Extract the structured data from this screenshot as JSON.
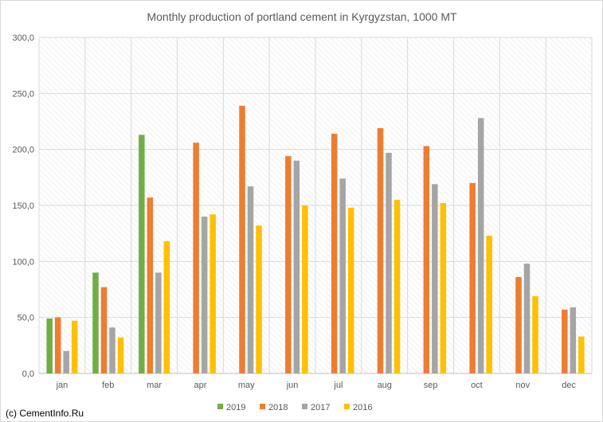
{
  "chart_data": {
    "type": "bar",
    "title": "Monthly production of portland cement in Kyrgyzstan, 1000 MT",
    "categories": [
      "jan",
      "feb",
      "mar",
      "apr",
      "may",
      "jun",
      "jul",
      "aug",
      "sep",
      "oct",
      "nov",
      "dec"
    ],
    "series": [
      {
        "name": "2019",
        "color": "#70ad47",
        "values": [
          49,
          90,
          213,
          null,
          null,
          null,
          null,
          null,
          null,
          null,
          null,
          null
        ]
      },
      {
        "name": "2018",
        "color": "#ed7d31",
        "values": [
          50,
          77,
          157,
          206,
          239,
          194,
          214,
          219,
          203,
          170,
          86,
          57
        ]
      },
      {
        "name": "2017",
        "color": "#a5a5a5",
        "values": [
          20,
          41,
          90,
          140,
          167,
          190,
          174,
          197,
          169,
          228,
          98,
          59
        ]
      },
      {
        "name": "2016",
        "color": "#ffc000",
        "values": [
          47,
          32,
          118,
          142,
          132,
          150,
          148,
          155,
          152,
          123,
          69,
          33
        ]
      }
    ],
    "ylim": [
      0,
      300
    ],
    "yticks": [
      "0,0",
      "50,0",
      "100,0",
      "150,0",
      "200,0",
      "250,0",
      "300,0"
    ],
    "grid": true,
    "legend": "bottom"
  },
  "footer": {
    "credit": "(c) CementInfo.Ru"
  }
}
